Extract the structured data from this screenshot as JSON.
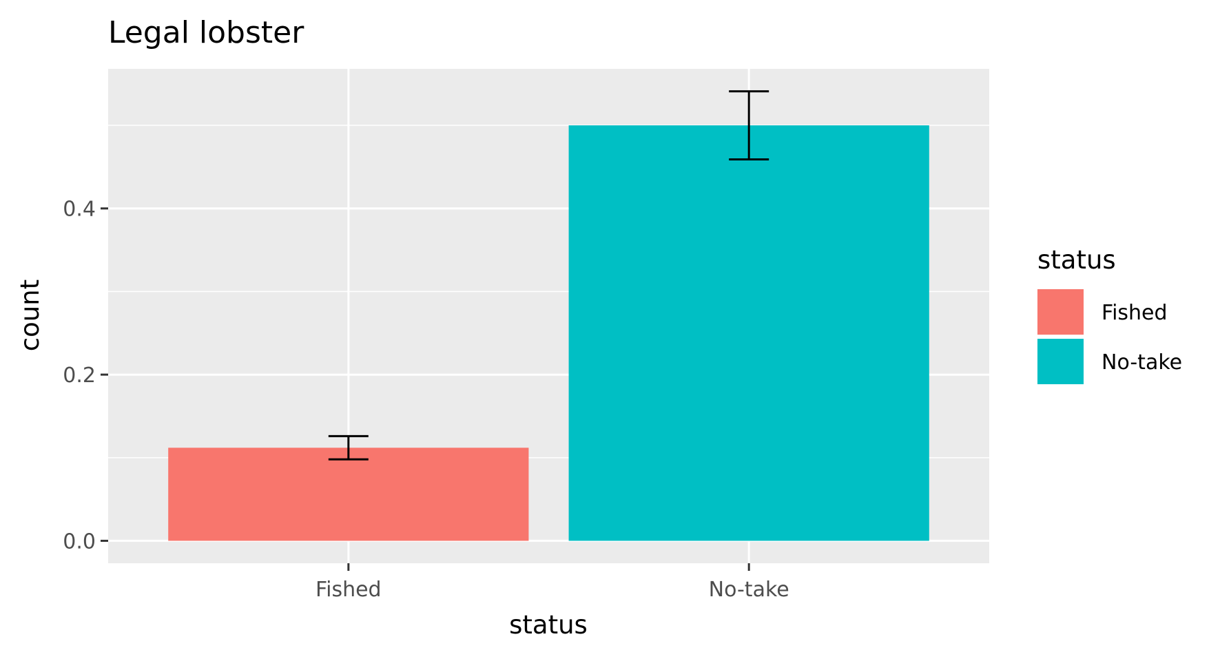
{
  "chart_data": {
    "type": "bar",
    "title": "Legal lobster",
    "xlabel": "status",
    "ylabel": "count",
    "categories": [
      "Fished",
      "No-take"
    ],
    "values": [
      0.112,
      0.5
    ],
    "error_bars": [
      {
        "lower": 0.098,
        "upper": 0.126
      },
      {
        "lower": 0.459,
        "upper": 0.541
      }
    ],
    "colors": [
      "#F8766D",
      "#00BFC4"
    ],
    "ylim": [
      -0.027,
      0.568
    ],
    "y_ticks": [
      {
        "value": 0.0,
        "label": "0.0"
      },
      {
        "value": 0.2,
        "label": "0.2"
      },
      {
        "value": 0.4,
        "label": "0.4"
      }
    ],
    "y_minor_ticks": [
      0.1,
      0.3,
      0.5
    ],
    "grid": true,
    "panel_background": "#EBEBEB",
    "legend": {
      "title": "status",
      "placement": "right",
      "items": [
        {
          "label": "Fished",
          "color": "#F8766D"
        },
        {
          "label": "No-take",
          "color": "#00BFC4"
        }
      ]
    }
  }
}
